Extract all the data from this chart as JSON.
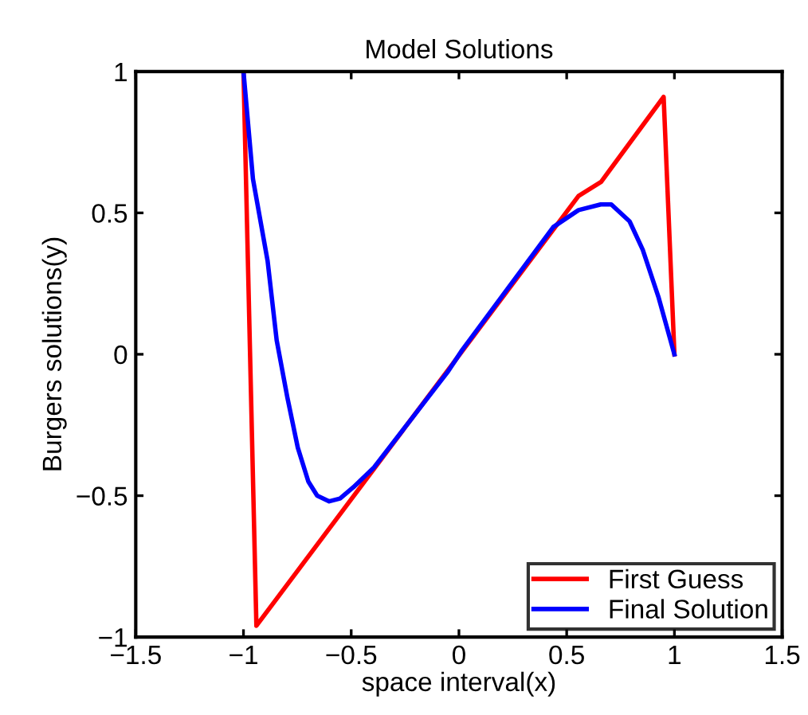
{
  "chart_data": {
    "type": "line",
    "title": "Model Solutions",
    "xlabel": "space interval(x)",
    "ylabel": "Burgers solutions(y)",
    "xlim": [
      -1.5,
      1.5
    ],
    "xticks": [
      {
        "value": -1.5,
        "label": "−1.5"
      },
      {
        "value": -1,
        "label": "−1"
      },
      {
        "value": -0.5,
        "label": "−0.5"
      },
      0,
      0.5,
      1,
      1.5
    ],
    "ylim": [
      -1,
      1
    ],
    "yticks": [
      {
        "value": -1,
        "label": "−1"
      },
      {
        "value": -0.5,
        "label": "−0.5"
      },
      0,
      0.5,
      1
    ],
    "grid": false,
    "legend": "bottom right",
    "marker": "none",
    "line_style": "solid",
    "series": [
      {
        "name": "First Guess",
        "color": "#ff0000",
        "x": [
          -1,
          -0.94,
          0.555,
          0.66,
          0.95,
          1
        ],
        "values": [
          1,
          -0.96,
          0.56,
          0.61,
          0.91,
          0
        ]
      },
      {
        "name": "Final Solution",
        "color": "#0000ff",
        "x": [
          -1,
          -0.956,
          -0.888,
          -0.846,
          -0.797,
          -0.748,
          -0.699,
          -0.658,
          -0.602,
          -0.552,
          -0.49,
          -0.394,
          -0.05,
          0.015,
          0.438,
          0.555,
          0.658,
          0.707,
          0.792,
          0.853,
          0.927,
          1
        ],
        "values": [
          1,
          0.62,
          0.33,
          0.05,
          -0.15,
          -0.33,
          -0.45,
          -0.5,
          -0.52,
          -0.51,
          -0.47,
          -0.4,
          -0.06,
          0.015,
          0.45,
          0.51,
          0.53,
          0.53,
          0.47,
          0.37,
          0.2,
          0
        ]
      }
    ]
  }
}
